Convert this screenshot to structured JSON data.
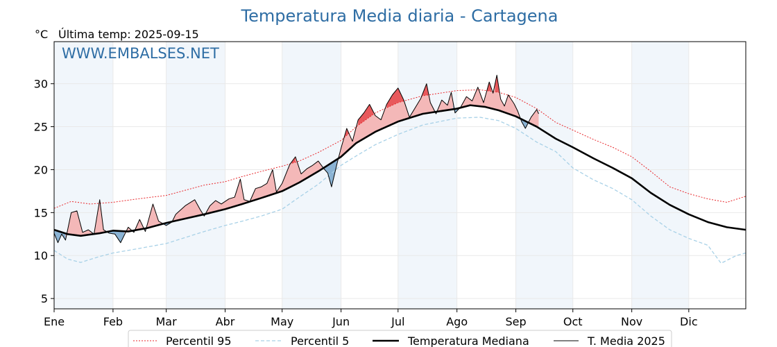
{
  "chart_data": {
    "type": "line",
    "title": "Temperatura Media diaria - Cartagena",
    "unit": "°C",
    "last_temp": "Última temp: 2025-09-15",
    "watermark": "WWW.EMBALSES.NET",
    "x_unit": "day_of_year",
    "xlim": [
      1,
      365
    ],
    "ylim": [
      3.8,
      34.9
    ],
    "yticks": [
      5,
      10,
      15,
      20,
      25,
      30
    ],
    "months": [
      "Ene",
      "Feb",
      "Mar",
      "Abr",
      "May",
      "Jun",
      "Jul",
      "Ago",
      "Sep",
      "Oct",
      "Nov",
      "Dic"
    ],
    "month_start_days": [
      1,
      32,
      60,
      91,
      121,
      152,
      182,
      213,
      244,
      274,
      305,
      335
    ],
    "grid": true,
    "alternate_month_shading": true,
    "legend_position": "bottom",
    "series": [
      {
        "name": "Percentil 95",
        "color": "#e8262a",
        "style": "dotted",
        "points": [
          [
            1,
            15.5
          ],
          [
            10,
            16.3
          ],
          [
            20,
            16.0
          ],
          [
            32,
            16.2
          ],
          [
            45,
            16.6
          ],
          [
            60,
            17.0
          ],
          [
            70,
            17.6
          ],
          [
            80,
            18.2
          ],
          [
            91,
            18.6
          ],
          [
            100,
            19.2
          ],
          [
            110,
            19.8
          ],
          [
            121,
            20.4
          ],
          [
            130,
            21.0
          ],
          [
            140,
            22.0
          ],
          [
            152,
            23.4
          ],
          [
            160,
            25.0
          ],
          [
            170,
            26.6
          ],
          [
            182,
            27.8
          ],
          [
            195,
            28.6
          ],
          [
            213,
            29.2
          ],
          [
            225,
            29.3
          ],
          [
            235,
            29.0
          ],
          [
            244,
            28.4
          ],
          [
            255,
            27.1
          ],
          [
            265,
            25.5
          ],
          [
            274,
            24.6
          ],
          [
            285,
            23.5
          ],
          [
            295,
            22.6
          ],
          [
            305,
            21.5
          ],
          [
            315,
            19.8
          ],
          [
            325,
            18.0
          ],
          [
            335,
            17.2
          ],
          [
            345,
            16.6
          ],
          [
            355,
            16.2
          ],
          [
            365,
            16.9
          ]
        ]
      },
      {
        "name": "Percentil 5",
        "color": "#a8d1e7",
        "style": "dashed",
        "points": [
          [
            1,
            10.6
          ],
          [
            8,
            9.6
          ],
          [
            15,
            9.2
          ],
          [
            25,
            9.9
          ],
          [
            32,
            10.3
          ],
          [
            45,
            10.8
          ],
          [
            60,
            11.4
          ],
          [
            70,
            12.1
          ],
          [
            80,
            12.8
          ],
          [
            91,
            13.5
          ],
          [
            100,
            14.0
          ],
          [
            110,
            14.6
          ],
          [
            121,
            15.4
          ],
          [
            130,
            16.8
          ],
          [
            140,
            18.3
          ],
          [
            152,
            20.5
          ],
          [
            160,
            21.6
          ],
          [
            170,
            22.9
          ],
          [
            182,
            24.1
          ],
          [
            195,
            25.2
          ],
          [
            213,
            26.0
          ],
          [
            225,
            26.1
          ],
          [
            235,
            25.7
          ],
          [
            244,
            24.8
          ],
          [
            255,
            23.2
          ],
          [
            265,
            22.1
          ],
          [
            274,
            20.2
          ],
          [
            285,
            18.8
          ],
          [
            295,
            17.8
          ],
          [
            305,
            16.5
          ],
          [
            315,
            14.6
          ],
          [
            325,
            13.0
          ],
          [
            335,
            12.0
          ],
          [
            345,
            11.2
          ],
          [
            352,
            9.1
          ],
          [
            360,
            10.0
          ],
          [
            365,
            10.3
          ]
        ]
      },
      {
        "name": "Temperatura Mediana",
        "color": "#000000",
        "style": "thick",
        "points": [
          [
            1,
            13.0
          ],
          [
            8,
            12.5
          ],
          [
            15,
            12.3
          ],
          [
            25,
            12.6
          ],
          [
            32,
            12.9
          ],
          [
            40,
            12.8
          ],
          [
            50,
            13.2
          ],
          [
            60,
            13.8
          ],
          [
            70,
            14.3
          ],
          [
            80,
            14.8
          ],
          [
            91,
            15.4
          ],
          [
            100,
            16.0
          ],
          [
            110,
            16.7
          ],
          [
            121,
            17.5
          ],
          [
            130,
            18.5
          ],
          [
            140,
            19.8
          ],
          [
            152,
            21.5
          ],
          [
            160,
            23.1
          ],
          [
            170,
            24.4
          ],
          [
            182,
            25.6
          ],
          [
            195,
            26.5
          ],
          [
            213,
            27.1
          ],
          [
            220,
            27.5
          ],
          [
            228,
            27.3
          ],
          [
            235,
            26.9
          ],
          [
            244,
            26.2
          ],
          [
            255,
            25.0
          ],
          [
            265,
            23.6
          ],
          [
            274,
            22.6
          ],
          [
            285,
            21.3
          ],
          [
            295,
            20.2
          ],
          [
            305,
            19.0
          ],
          [
            315,
            17.3
          ],
          [
            325,
            15.9
          ],
          [
            335,
            14.8
          ],
          [
            345,
            13.9
          ],
          [
            355,
            13.3
          ],
          [
            365,
            13.0
          ]
        ]
      },
      {
        "name": "T. Media 2025",
        "color": "#000000",
        "style": "thin",
        "points": [
          [
            1,
            12.6
          ],
          [
            3,
            11.5
          ],
          [
            5,
            12.5
          ],
          [
            7,
            11.8
          ],
          [
            10,
            15.0
          ],
          [
            13,
            15.2
          ],
          [
            16,
            12.7
          ],
          [
            19,
            13.0
          ],
          [
            22,
            12.5
          ],
          [
            25,
            16.5
          ],
          [
            27,
            13.0
          ],
          [
            30,
            12.6
          ],
          [
            33,
            12.5
          ],
          [
            36,
            11.5
          ],
          [
            40,
            13.3
          ],
          [
            43,
            12.7
          ],
          [
            46,
            14.2
          ],
          [
            49,
            12.8
          ],
          [
            53,
            16.0
          ],
          [
            56,
            14.0
          ],
          [
            60,
            13.5
          ],
          [
            63,
            13.9
          ],
          [
            65,
            14.8
          ],
          [
            70,
            15.8
          ],
          [
            75,
            16.5
          ],
          [
            78,
            15.3
          ],
          [
            80,
            14.6
          ],
          [
            83,
            15.8
          ],
          [
            86,
            16.4
          ],
          [
            89,
            16.0
          ],
          [
            93,
            16.6
          ],
          [
            96,
            16.8
          ],
          [
            99,
            18.9
          ],
          [
            101,
            16.5
          ],
          [
            104,
            16.3
          ],
          [
            107,
            17.8
          ],
          [
            110,
            18.0
          ],
          [
            113,
            18.4
          ],
          [
            116,
            20.0
          ],
          [
            118,
            17.4
          ],
          [
            121,
            18.4
          ],
          [
            125,
            20.6
          ],
          [
            128,
            21.5
          ],
          [
            131,
            19.5
          ],
          [
            134,
            20.1
          ],
          [
            137,
            20.5
          ],
          [
            140,
            21.0
          ],
          [
            143,
            20.1
          ],
          [
            145,
            19.6
          ],
          [
            147,
            18.0
          ],
          [
            150,
            20.8
          ],
          [
            152,
            22.5
          ],
          [
            155,
            24.8
          ],
          [
            158,
            23.3
          ],
          [
            161,
            25.8
          ],
          [
            164,
            26.6
          ],
          [
            167,
            27.6
          ],
          [
            170,
            26.3
          ],
          [
            173,
            25.8
          ],
          [
            176,
            27.6
          ],
          [
            179,
            28.7
          ],
          [
            182,
            29.5
          ],
          [
            185,
            28.1
          ],
          [
            188,
            26.1
          ],
          [
            191,
            27.2
          ],
          [
            194,
            28.3
          ],
          [
            197,
            30.0
          ],
          [
            199,
            27.8
          ],
          [
            202,
            26.5
          ],
          [
            205,
            28.1
          ],
          [
            208,
            27.5
          ],
          [
            210,
            29.0
          ],
          [
            212,
            26.6
          ],
          [
            215,
            27.3
          ],
          [
            218,
            28.5
          ],
          [
            221,
            28.0
          ],
          [
            224,
            29.6
          ],
          [
            227,
            27.8
          ],
          [
            230,
            30.2
          ],
          [
            232,
            28.9
          ],
          [
            234,
            31.0
          ],
          [
            236,
            28.2
          ],
          [
            238,
            27.4
          ],
          [
            240,
            28.7
          ],
          [
            243,
            27.7
          ],
          [
            245,
            26.8
          ],
          [
            247,
            25.6
          ],
          [
            249,
            24.8
          ],
          [
            252,
            26.1
          ],
          [
            255,
            27.0
          ],
          [
            256,
            26.5
          ]
        ]
      }
    ]
  }
}
